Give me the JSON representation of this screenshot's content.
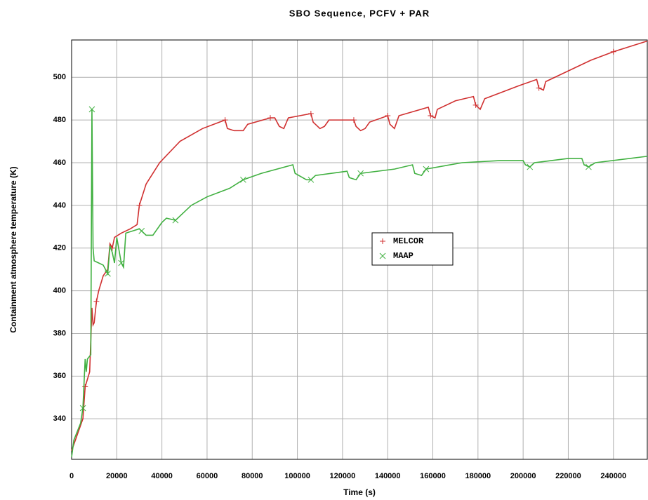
{
  "chart_data": {
    "type": "line",
    "title": "SBO Sequence, PCFV + PAR",
    "xlabel": "Time (s)",
    "ylabel": "Containment atmosphere temperature  (K)",
    "xlim": [
      0,
      255000
    ],
    "ylim": [
      321,
      517.5
    ],
    "xticks": [
      0,
      20000,
      40000,
      60000,
      80000,
      100000,
      120000,
      140000,
      160000,
      180000,
      200000,
      220000,
      240000
    ],
    "yticks": [
      340,
      360,
      380,
      400,
      420,
      440,
      460,
      480,
      500
    ],
    "grid": true,
    "legend": "center-right",
    "series": [
      {
        "name": "MELCOR",
        "color": "#d03030",
        "marker": "plus",
        "x": [
          0,
          2000,
          5000,
          6000,
          8000,
          9000,
          9500,
          10000,
          11000,
          12000,
          14000,
          16000,
          17000,
          18000,
          19000,
          22000,
          26000,
          29000,
          30000,
          33000,
          39000,
          48000,
          58000,
          68000,
          69000,
          72000,
          76000,
          78000,
          88000,
          90000,
          92000,
          94000,
          96000,
          106000,
          107000,
          110000,
          112000,
          114000,
          125000,
          126000,
          128000,
          130000,
          132000,
          140000,
          141000,
          143000,
          145000,
          158000,
          159000,
          161000,
          162000,
          170000,
          178000,
          179000,
          181000,
          183000,
          198000,
          206000,
          207000,
          209000,
          210000,
          220000,
          230000,
          240000,
          255000
        ],
        "values": [
          325,
          331,
          340,
          355,
          362,
          392,
          384,
          385,
          395,
          400,
          407,
          410,
          422,
          420,
          425,
          427,
          429,
          431,
          440,
          450,
          460,
          470,
          476,
          480,
          476,
          475,
          475,
          478,
          481,
          481,
          477,
          476,
          481,
          483,
          479,
          476,
          477,
          480,
          480,
          477,
          475,
          476,
          479,
          482,
          478,
          476,
          482,
          486,
          482,
          481,
          485,
          489,
          491,
          487,
          485,
          490,
          496,
          499,
          495,
          494,
          498,
          503,
          508,
          512,
          517
        ]
      },
      {
        "name": "MAAP",
        "color": "#40b040",
        "marker": "cross",
        "x": [
          0,
          1000,
          4000,
          5000,
          6000,
          6500,
          7000,
          8500,
          9000,
          9500,
          10000,
          12000,
          14000,
          16000,
          17000,
          18000,
          19000,
          20000,
          22000,
          23000,
          24000,
          27000,
          30000,
          31000,
          33000,
          36000,
          40000,
          42000,
          46000,
          48000,
          53000,
          60000,
          70000,
          76000,
          84000,
          98000,
          99000,
          104000,
          106000,
          108000,
          122000,
          123000,
          126000,
          128000,
          143000,
          151000,
          152000,
          155000,
          157000,
          173000,
          190000,
          200000,
          201000,
          203000,
          205000,
          220000,
          226000,
          227000,
          229000,
          232000,
          255000
        ],
        "values": [
          322,
          330,
          338,
          345,
          368,
          362,
          368,
          370,
          485,
          420,
          414,
          413,
          412,
          408,
          421,
          418,
          413,
          425,
          413,
          411,
          427,
          428,
          429,
          428,
          426,
          426,
          432,
          434,
          433,
          435,
          440,
          444,
          448,
          452,
          455,
          459,
          455,
          452,
          452,
          454,
          456,
          453,
          452,
          455,
          457,
          459,
          455,
          454,
          457,
          460,
          461,
          461,
          459,
          458,
          460,
          462,
          462,
          459,
          458,
          460,
          463
        ]
      }
    ]
  }
}
